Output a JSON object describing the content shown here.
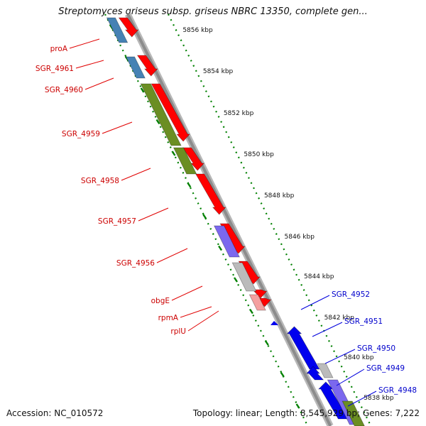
{
  "title": "Streptomyces griseus subsp. griseus NBRC 13350, complete gen...",
  "footer": {
    "accession": "Accession: NC_010572",
    "topology": "Topology: linear; Length: 8,545,929 bp; Genes: 7,222"
  },
  "colors": {
    "backbone": "#8c8c8c",
    "forward_cds": "#ff0000",
    "reverse_cds": "#0000ee",
    "green_feature": "#6b8e23",
    "steelblue_feature": "#4682b4",
    "slate_feature": "#7b68ee",
    "grey_feature": "#bbbbbb",
    "tick": "#008000",
    "label_forward": "#cc0000",
    "label_reverse": "#0000cc"
  },
  "scale_labels": [
    "5856 kbp",
    "5854 kbp",
    "5852 kbp",
    "5850 kbp",
    "5848 kbp",
    "5846 kbp",
    "5844 kbp",
    "5842 kbp",
    "5840 kbp",
    "5838 kbp"
  ],
  "left_labels": [
    "proA",
    "SGR_4961",
    "SGR_4960",
    "SGR_4959",
    "SGR_4958",
    "SGR_4957",
    "SGR_4956",
    "obgE",
    "rpmA",
    "rplU"
  ],
  "right_labels": [
    "SGR_4952",
    "SGR_4951",
    "SGR_4950",
    "SGR_4949",
    "SGR_4948"
  ]
}
